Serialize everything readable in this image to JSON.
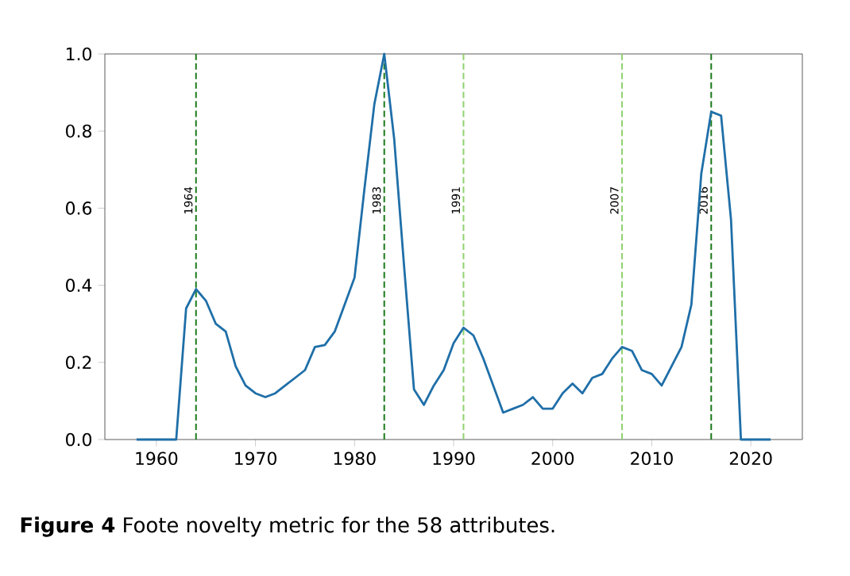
{
  "chart_data": {
    "type": "line",
    "annotations": [
      "**Figure 4** Foote novelty metric for the 58 attributes."
    ],
    "x": [
      1958,
      1959,
      1960,
      1961,
      1962,
      1963,
      1964,
      1965,
      1966,
      1967,
      1968,
      1969,
      1970,
      1971,
      1972,
      1973,
      1974,
      1975,
      1976,
      1977,
      1978,
      1979,
      1980,
      1981,
      1982,
      1983,
      1984,
      1985,
      1986,
      1987,
      1988,
      1989,
      1990,
      1991,
      1992,
      1993,
      1994,
      1995,
      1996,
      1997,
      1998,
      1999,
      2000,
      2001,
      2002,
      2003,
      2004,
      2005,
      2006,
      2007,
      2008,
      2009,
      2010,
      2011,
      2012,
      2013,
      2014,
      2015,
      2016,
      2017,
      2018,
      2019,
      2020,
      2021,
      2022
    ],
    "series": [
      {
        "color": "#1f6fa8",
        "values": [
          0,
          0,
          0,
          0,
          0,
          0.34,
          0.39,
          0.36,
          0.3,
          0.28,
          0.19,
          0.14,
          0.12,
          0.11,
          0.12,
          0.14,
          0.16,
          0.18,
          0.24,
          0.245,
          0.28,
          0.35,
          0.42,
          0.65,
          0.87,
          1.0,
          0.78,
          0.45,
          0.13,
          0.09,
          0.14,
          0.18,
          0.25,
          0.29,
          0.27,
          0.21,
          0.14,
          0.07,
          0.08,
          0.09,
          0.11,
          0.08,
          0.08,
          0.12,
          0.145,
          0.12,
          0.16,
          0.17,
          0.21,
          0.24,
          0.23,
          0.18,
          0.17,
          0.14,
          0.19,
          0.24,
          0.35,
          0.69,
          0.85,
          0.84,
          0.57,
          0,
          0,
          0,
          0
        ]
      }
    ],
    "xlim": [
      1954.8,
      2025.2
    ],
    "ylim": [
      0,
      1
    ],
    "xticks": [
      1960,
      1970,
      1980,
      1990,
      2000,
      2010,
      2020
    ],
    "yticks": [
      {
        "value": 0,
        "label": "0.0"
      },
      {
        "value": 0.2,
        "label": "0.2"
      },
      {
        "value": 0.4,
        "label": "0.4"
      },
      {
        "value": 0.6,
        "label": "0.6"
      },
      {
        "value": 0.8,
        "label": "0.8"
      },
      {
        "value": 1,
        "label": "1.0"
      }
    ],
    "ref_lines": [
      {
        "axis": "x",
        "value": 1964,
        "label": "1964",
        "color": "#1a7a1a",
        "line_style": "dashed"
      },
      {
        "axis": "x",
        "value": 1983,
        "label": "1983",
        "color": "#1a7a1a",
        "line_style": "dashed"
      },
      {
        "axis": "x",
        "value": 1991,
        "label": "1991",
        "color": "#8fd16f",
        "line_style": "dashed"
      },
      {
        "axis": "x",
        "value": 2007,
        "label": "2007",
        "color": "#8fd16f",
        "line_style": "dashed"
      },
      {
        "axis": "x",
        "value": 2016,
        "label": "2016",
        "color": "#1a7a1a",
        "line_style": "dashed"
      }
    ],
    "grid": false,
    "marker": "none",
    "line_style": "solid"
  }
}
